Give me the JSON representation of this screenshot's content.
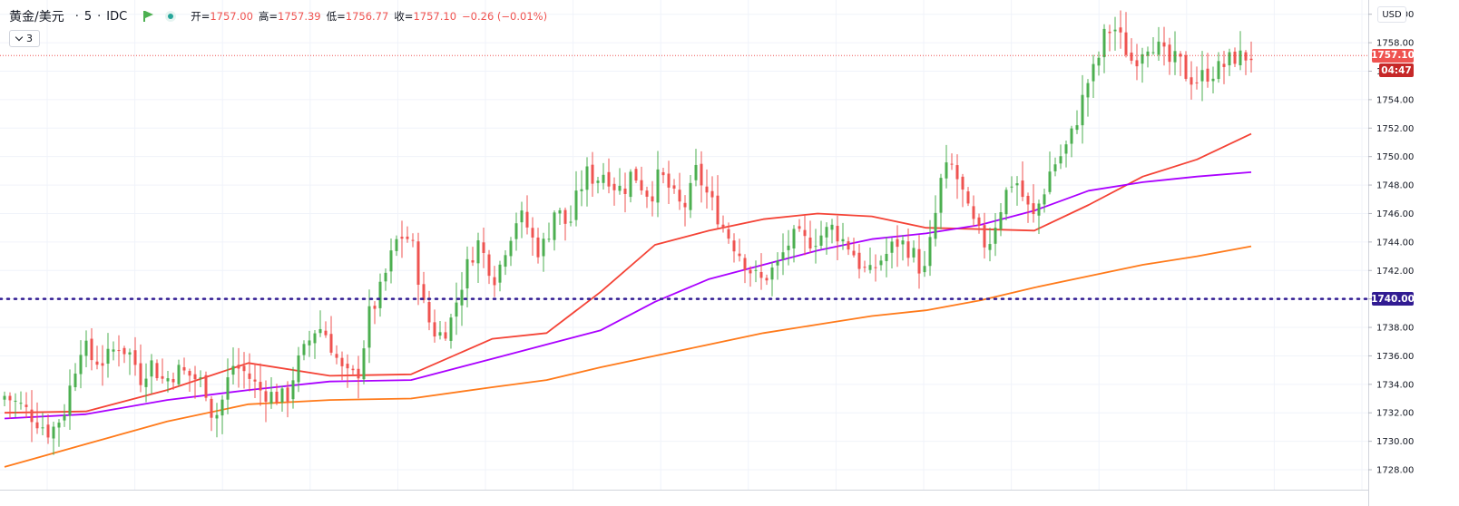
{
  "header": {
    "symbol": "黄金/美元",
    "interval": "5",
    "exchange": "IDC",
    "sep1": "·",
    "sep2": "·",
    "open_label": "开=",
    "open_value": "1757.00",
    "high_label": "高=",
    "high_value": "1757.39",
    "low_label": "低=",
    "low_value": "1756.77",
    "close_label": "收=",
    "close_value": "1757.10",
    "change": "−0.26 (−0.01%)"
  },
  "legend_toggle": {
    "count": "3"
  },
  "price_axis": {
    "currency": "USD"
  },
  "labels": {
    "last_price": "1757.10",
    "countdown": "04:47",
    "level_line": "1740.00"
  },
  "colors": {
    "up": "#4caf50",
    "down": "#ef5350",
    "ma_fast": "#f44336",
    "ma_mid": "#aa00ff",
    "ma_slow": "#ff7a1a",
    "level_line": "#311b92",
    "last_price_line": "#ef5350"
  },
  "chart_data": {
    "type": "candlestick",
    "symbol": "黄金/美元",
    "timeframe_minutes": 5,
    "y_ticks": [
      1728,
      1730,
      1732,
      1734,
      1736,
      1738,
      1740,
      1742,
      1744,
      1746,
      1748,
      1750,
      1752,
      1754,
      1756,
      1758,
      1760
    ],
    "ylim": [
      1726.6,
      1761.0
    ],
    "horizontal_level": 1740.0,
    "last_close": 1757.1,
    "candle_count": 230,
    "close_anchors": [
      [
        0,
        1733.2
      ],
      [
        8,
        1732.4
      ],
      [
        14,
        1731.5
      ],
      [
        20,
        1730.6
      ],
      [
        26,
        1732.0
      ],
      [
        30,
        1734.6
      ],
      [
        34,
        1737.0
      ],
      [
        38,
        1735.8
      ],
      [
        44,
        1735.6
      ],
      [
        50,
        1736.8
      ],
      [
        56,
        1736.0
      ],
      [
        60,
        1734.4
      ],
      [
        64,
        1735.6
      ],
      [
        70,
        1734.2
      ],
      [
        76,
        1735.0
      ],
      [
        82,
        1734.6
      ],
      [
        88,
        1734.0
      ],
      [
        92,
        1731.4
      ],
      [
        96,
        1733.0
      ],
      [
        100,
        1735.4
      ],
      [
        106,
        1734.8
      ],
      [
        112,
        1733.6
      ],
      [
        118,
        1733.2
      ],
      [
        124,
        1733.0
      ],
      [
        128,
        1735.2
      ],
      [
        132,
        1736.4
      ],
      [
        136,
        1737.8
      ],
      [
        140,
        1738.0
      ],
      [
        144,
        1736.6
      ],
      [
        148,
        1735.0
      ],
      [
        152,
        1734.4
      ],
      [
        156,
        1735.0
      ],
      [
        160,
        1738.8
      ],
      [
        164,
        1740.0
      ],
      [
        168,
        1742.0
      ],
      [
        172,
        1744.0
      ],
      [
        176,
        1744.6
      ],
      [
        180,
        1743.4
      ],
      [
        184,
        1739.6
      ],
      [
        188,
        1737.8
      ],
      [
        192,
        1737.5
      ],
      [
        196,
        1738.4
      ],
      [
        200,
        1740.6
      ],
      [
        204,
        1742.6
      ],
      [
        208,
        1744.0
      ],
      [
        212,
        1742.6
      ],
      [
        216,
        1741.4
      ],
      [
        220,
        1743.6
      ],
      [
        226,
        1746.0
      ],
      [
        230,
        1745.0
      ],
      [
        234,
        1743.4
      ],
      [
        238,
        1744.0
      ],
      [
        242,
        1746.4
      ],
      [
        248,
        1745.0
      ],
      [
        252,
        1747.4
      ],
      [
        256,
        1748.8
      ],
      [
        260,
        1748.4
      ],
      [
        264,
        1749.0
      ],
      [
        268,
        1748.0
      ],
      [
        272,
        1747.6
      ],
      [
        276,
        1749.0
      ],
      [
        280,
        1748.0
      ],
      [
        284,
        1747.2
      ],
      [
        288,
        1748.8
      ],
      [
        292,
        1747.8
      ],
      [
        296,
        1746.6
      ],
      [
        300,
        1746.6
      ],
      [
        304,
        1749.0
      ],
      [
        308,
        1747.6
      ],
      [
        312,
        1746.4
      ],
      [
        316,
        1745.0
      ],
      [
        320,
        1744.0
      ],
      [
        324,
        1743.0
      ],
      [
        328,
        1742.0
      ],
      [
        332,
        1741.2
      ],
      [
        336,
        1741.8
      ],
      [
        340,
        1742.4
      ],
      [
        344,
        1743.8
      ],
      [
        348,
        1744.4
      ],
      [
        352,
        1744.0
      ],
      [
        356,
        1744.2
      ],
      [
        360,
        1744.6
      ],
      [
        364,
        1745.0
      ],
      [
        368,
        1744.2
      ],
      [
        372,
        1743.6
      ],
      [
        376,
        1742.4
      ],
      [
        380,
        1741.6
      ],
      [
        384,
        1742.6
      ],
      [
        388,
        1743.2
      ],
      [
        392,
        1744.0
      ],
      [
        396,
        1743.8
      ],
      [
        400,
        1743.0
      ],
      [
        404,
        1741.6
      ],
      [
        408,
        1744.8
      ],
      [
        412,
        1748.6
      ],
      [
        416,
        1749.4
      ],
      [
        420,
        1748.0
      ],
      [
        424,
        1745.8
      ],
      [
        428,
        1744.6
      ],
      [
        432,
        1743.6
      ],
      [
        436,
        1745.6
      ],
      [
        440,
        1747.4
      ],
      [
        444,
        1748.6
      ],
      [
        448,
        1747.0
      ],
      [
        452,
        1745.6
      ],
      [
        456,
        1747.2
      ],
      [
        460,
        1749.2
      ],
      [
        464,
        1750.0
      ],
      [
        468,
        1751.0
      ],
      [
        472,
        1753.0
      ],
      [
        476,
        1755.2
      ],
      [
        480,
        1756.4
      ],
      [
        484,
        1758.8
      ],
      [
        488,
        1759.0
      ],
      [
        492,
        1757.8
      ],
      [
        496,
        1756.6
      ],
      [
        500,
        1757.6
      ],
      [
        504,
        1758.2
      ],
      [
        508,
        1757.4
      ],
      [
        512,
        1756.6
      ],
      [
        516,
        1756.8
      ],
      [
        520,
        1755.6
      ],
      [
        524,
        1755.4
      ],
      [
        528,
        1755.8
      ],
      [
        532,
        1756.0
      ],
      [
        536,
        1756.4
      ],
      [
        540,
        1757.0
      ],
      [
        544,
        1757.0
      ],
      [
        548,
        1757.1
      ]
    ],
    "moving_averages": [
      {
        "color": "#f44336",
        "points": [
          [
            0,
            1732.0
          ],
          [
            30,
            1732.1
          ],
          [
            60,
            1733.6
          ],
          [
            90,
            1735.5
          ],
          [
            120,
            1734.6
          ],
          [
            150,
            1734.7
          ],
          [
            180,
            1737.2
          ],
          [
            200,
            1737.6
          ],
          [
            220,
            1740.5
          ],
          [
            240,
            1743.8
          ],
          [
            260,
            1744.8
          ],
          [
            280,
            1745.6
          ],
          [
            300,
            1746.0
          ],
          [
            320,
            1745.8
          ],
          [
            340,
            1745.0
          ],
          [
            360,
            1744.9
          ],
          [
            380,
            1744.8
          ],
          [
            400,
            1746.6
          ],
          [
            420,
            1748.6
          ],
          [
            440,
            1749.8
          ],
          [
            460,
            1751.6
          ]
        ]
      },
      {
        "color": "#aa00ff",
        "points": [
          [
            0,
            1731.6
          ],
          [
            30,
            1731.9
          ],
          [
            60,
            1732.9
          ],
          [
            90,
            1733.6
          ],
          [
            120,
            1734.2
          ],
          [
            150,
            1734.3
          ],
          [
            180,
            1735.8
          ],
          [
            200,
            1736.8
          ],
          [
            220,
            1737.8
          ],
          [
            240,
            1739.8
          ],
          [
            260,
            1741.4
          ],
          [
            280,
            1742.4
          ],
          [
            300,
            1743.4
          ],
          [
            320,
            1744.2
          ],
          [
            340,
            1744.6
          ],
          [
            360,
            1745.2
          ],
          [
            380,
            1746.2
          ],
          [
            400,
            1747.6
          ],
          [
            420,
            1748.2
          ],
          [
            440,
            1748.6
          ],
          [
            460,
            1748.9
          ]
        ]
      },
      {
        "color": "#ff7a1a",
        "points": [
          [
            0,
            1728.2
          ],
          [
            30,
            1729.8
          ],
          [
            60,
            1731.4
          ],
          [
            90,
            1732.6
          ],
          [
            120,
            1732.9
          ],
          [
            150,
            1733.0
          ],
          [
            180,
            1733.8
          ],
          [
            200,
            1734.3
          ],
          [
            220,
            1735.2
          ],
          [
            240,
            1736.0
          ],
          [
            260,
            1736.8
          ],
          [
            280,
            1737.6
          ],
          [
            300,
            1738.2
          ],
          [
            320,
            1738.8
          ],
          [
            340,
            1739.2
          ],
          [
            360,
            1739.9
          ],
          [
            380,
            1740.8
          ],
          [
            400,
            1741.6
          ],
          [
            420,
            1742.4
          ],
          [
            440,
            1743.0
          ],
          [
            460,
            1743.7
          ]
        ]
      }
    ]
  }
}
